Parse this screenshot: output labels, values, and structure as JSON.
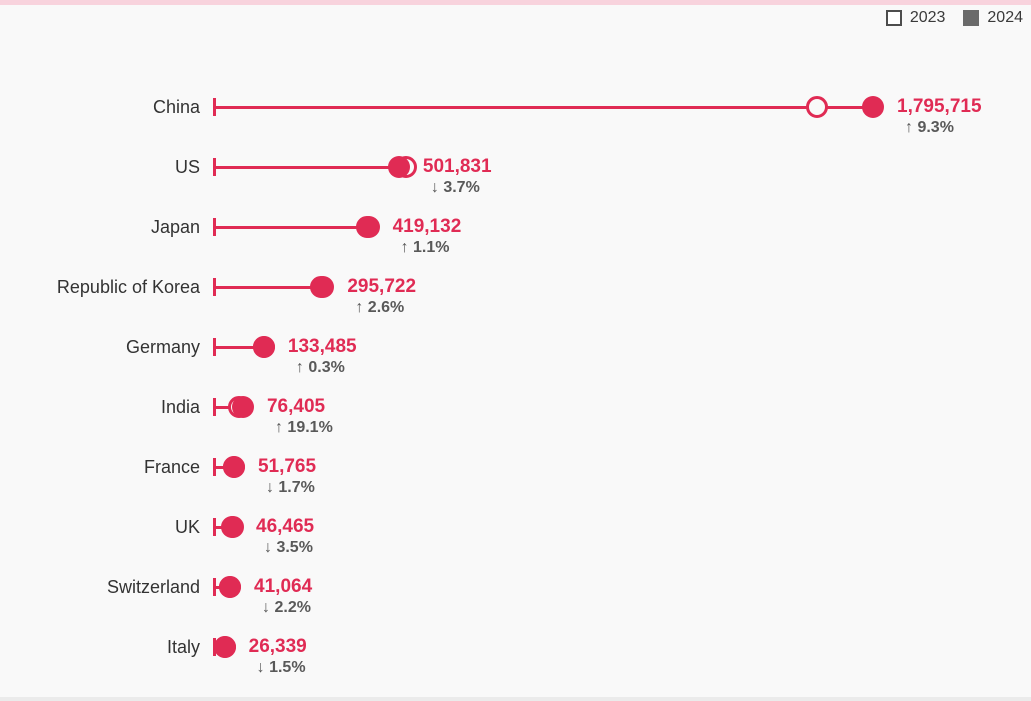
{
  "legend": {
    "items": [
      {
        "label": "2023",
        "swatch": "open"
      },
      {
        "label": "2024",
        "swatch": "filled"
      }
    ]
  },
  "chart_data": {
    "type": "scatter",
    "subtype": "lollipop-dumbbell",
    "title": "",
    "xlabel": "",
    "ylabel": "",
    "grid": false,
    "legend_position": "top-right",
    "xlim": [
      0,
      1960000
    ],
    "categories": [
      "China",
      "US",
      "Japan",
      "Republic of Korea",
      "Germany",
      "India",
      "France",
      "UK",
      "Switzerland",
      "Italy"
    ],
    "series": [
      {
        "name": "2023",
        "marker": "open-circle",
        "estimated_from_pct": true,
        "values": [
          1642923,
          521112,
          414572,
          288228,
          133086,
          64151,
          52660,
          48150,
          41988,
          26740
        ]
      },
      {
        "name": "2024",
        "marker": "filled-circle",
        "values": [
          1795715,
          501831,
          419132,
          295722,
          133485,
          76405,
          51765,
          46465,
          41064,
          26339
        ]
      }
    ],
    "value_labels": [
      "1,795,715",
      "501,831",
      "419,132",
      "295,722",
      "133,485",
      "76,405",
      "51,765",
      "46,465",
      "41,064",
      "26,339"
    ],
    "change_labels": [
      "↑ 9.3%",
      "↓ 3.7%",
      "↑ 1.1%",
      "↑ 2.6%",
      "↑ 0.3%",
      "↑ 19.1%",
      "↓ 1.7%",
      "↓ 3.5%",
      "↓ 2.2%",
      "↓ 1.5%"
    ],
    "colors": {
      "accent": "#e02b54",
      "category_label": "#333333",
      "pct_label": "#595959",
      "background": "#f9f9f9",
      "top_strip": "#f8d3dd",
      "bottom_strip": "#ebebeb",
      "legend_filled": "#6a6a6a",
      "legend_border": "#4d4d4d"
    }
  }
}
